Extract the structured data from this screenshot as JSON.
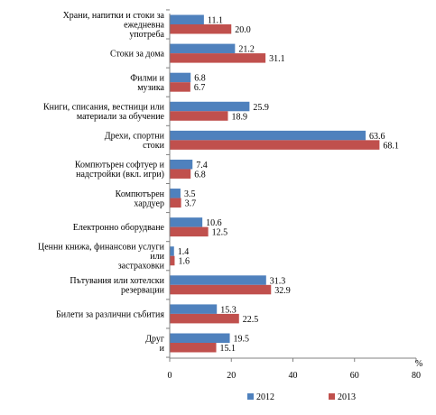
{
  "chart_data": {
    "type": "bar",
    "orientation": "horizontal",
    "categories": [
      [
        "Храни, напитки и стоки за",
        "ежедневна",
        "употреба"
      ],
      [
        "Стоки за дома"
      ],
      [
        "Филми и",
        "музика"
      ],
      [
        "Книги, списания, вестници или",
        "материали за обучение"
      ],
      [
        "Дрехи, спортни",
        "стоки"
      ],
      [
        "Компютърен софтуер и",
        "надстройки (вкл. игри)"
      ],
      [
        "Компютърен",
        "хардуер"
      ],
      [
        "Електронно оборудване"
      ],
      [
        "Ценни книжа, финансови услуги",
        "или",
        "застраховки"
      ],
      [
        "Пътувания или хотелски",
        "резервации"
      ],
      [
        "Билети за различни събития"
      ],
      [
        "Друг",
        "и"
      ]
    ],
    "series": [
      {
        "name": "2012",
        "color": "#4f81bd",
        "values": [
          11.1,
          21.2,
          6.8,
          25.9,
          63.6,
          7.4,
          3.5,
          10.6,
          1.4,
          31.3,
          15.3,
          19.5
        ],
        "labels": [
          "11.1",
          "21.2",
          "6.8",
          "25.9",
          "63.6",
          "7.4",
          "3.5",
          "10.6",
          "1.4",
          "31.3",
          "15.3",
          "19.5"
        ]
      },
      {
        "name": "2013",
        "color": "#c0504d",
        "values": [
          20.0,
          31.1,
          6.7,
          18.9,
          68.1,
          6.8,
          3.7,
          12.5,
          1.6,
          32.9,
          22.5,
          15.1
        ],
        "labels": [
          "20.0",
          "31.1",
          "6.7",
          "18.9",
          "68.1",
          "6.8",
          "3.7",
          "12.5",
          "1.6",
          "32.9",
          "22.5",
          "15.1"
        ]
      }
    ],
    "xlim": [
      0,
      80
    ],
    "xticks": [
      "0",
      "20",
      "40",
      "60",
      "80"
    ],
    "unit": "%",
    "grid": false,
    "legend_position": "bottom"
  }
}
